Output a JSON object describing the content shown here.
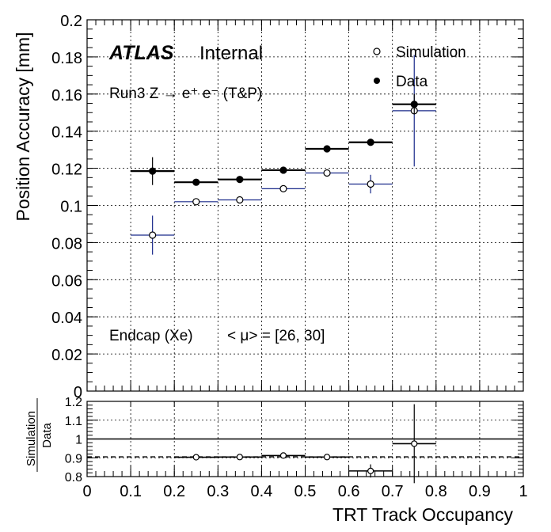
{
  "chart_data": [
    {
      "type": "scatter",
      "experiment": "ATLAS",
      "status": "Internal",
      "annotation_top": "Run3 Z → e⁺ e⁻ (T&P)",
      "annotation_region": "Endcap (Xe)",
      "annotation_pileup": "< μ> = [26, 30]",
      "ylabel": "Position Accuracy [mm]",
      "xlim": [
        0,
        1
      ],
      "ylim": [
        0,
        0.2
      ],
      "yticks": [
        "0",
        "0.02",
        "0.04",
        "0.06",
        "0.08",
        "0.1",
        "0.12",
        "0.14",
        "0.16",
        "0.18",
        "0.2"
      ],
      "grid": true,
      "legend_position": "top-right",
      "series": [
        {
          "name": "Simulation",
          "marker": "open-circle",
          "color": "#1a2a8a",
          "points": [
            {
              "x": 0.15,
              "xerr": 0.05,
              "y": 0.084,
              "yerr": 0.0105
            },
            {
              "x": 0.25,
              "xerr": 0.05,
              "y": 0.102,
              "yerr": 0.0015
            },
            {
              "x": 0.35,
              "xerr": 0.05,
              "y": 0.103,
              "yerr": 0.001
            },
            {
              "x": 0.45,
              "xerr": 0.05,
              "y": 0.109,
              "yerr": 0.001
            },
            {
              "x": 0.55,
              "xerr": 0.05,
              "y": 0.1175,
              "yerr": 0.001
            },
            {
              "x": 0.65,
              "xerr": 0.05,
              "y": 0.1115,
              "yerr": 0.005
            },
            {
              "x": 0.75,
              "xerr": 0.05,
              "y": 0.151,
              "yerr": 0.03
            }
          ]
        },
        {
          "name": "Data",
          "marker": "filled-circle",
          "color": "#000000",
          "points": [
            {
              "x": 0.15,
              "xerr": 0.05,
              "y": 0.1185,
              "yerr": 0.0075
            },
            {
              "x": 0.25,
              "xerr": 0.05,
              "y": 0.1125,
              "yerr": 0.001
            },
            {
              "x": 0.35,
              "xerr": 0.05,
              "y": 0.114,
              "yerr": 0.001
            },
            {
              "x": 0.45,
              "xerr": 0.05,
              "y": 0.119,
              "yerr": 0.001
            },
            {
              "x": 0.55,
              "xerr": 0.05,
              "y": 0.1305,
              "yerr": 0.001
            },
            {
              "x": 0.65,
              "xerr": 0.05,
              "y": 0.134,
              "yerr": 0.001
            },
            {
              "x": 0.75,
              "xerr": 0.05,
              "y": 0.1545,
              "yerr": 0.0055
            }
          ]
        }
      ]
    },
    {
      "type": "scatter",
      "ylabel_top": "Simulation",
      "ylabel_bottom": "Data",
      "xlabel": "TRT Track Occupancy",
      "xlim": [
        0,
        1
      ],
      "ylim": [
        0.8,
        1.2
      ],
      "xticks": [
        "0",
        "0.1",
        "0.2",
        "0.3",
        "0.4",
        "0.5",
        "0.6",
        "0.7",
        "0.8",
        "0.9",
        "1"
      ],
      "yticks": [
        "0.8",
        "0.9",
        "1",
        "1.1",
        "1.2"
      ],
      "reference_line": 1.0,
      "average_line": 0.905,
      "grid": true,
      "series": [
        {
          "name": "Simulation/Data",
          "marker": "open-circle",
          "points": [
            {
              "x": 0.25,
              "xerr": 0.05,
              "y": 0.903,
              "yerr": 0.015
            },
            {
              "x": 0.35,
              "xerr": 0.05,
              "y": 0.904,
              "yerr": 0.004
            },
            {
              "x": 0.45,
              "xerr": 0.05,
              "y": 0.912,
              "yerr": 0.004
            },
            {
              "x": 0.55,
              "xerr": 0.05,
              "y": 0.904,
              "yerr": 0.004
            },
            {
              "x": 0.65,
              "xerr": 0.05,
              "y": 0.83,
              "yerr": 0.035
            },
            {
              "x": 0.75,
              "xerr": 0.05,
              "y": 0.975,
              "yerr": 0.21
            }
          ]
        }
      ]
    }
  ]
}
